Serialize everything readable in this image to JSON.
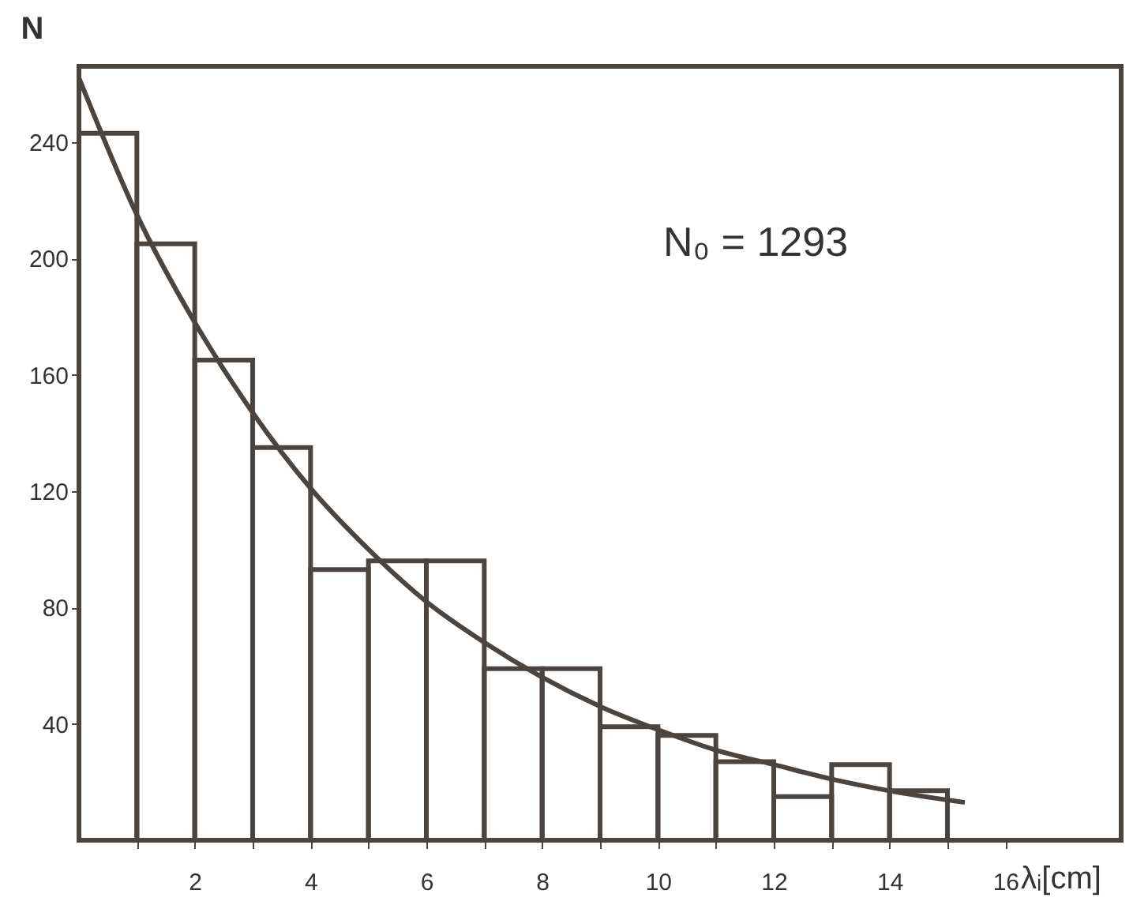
{
  "chart_data": {
    "type": "histogram",
    "xlabel": "λᵢ[cm]",
    "ylabel": "N",
    "annotations": [
      "N₀ = 1293"
    ],
    "xlim": [
      0,
      18
    ],
    "ylim": [
      0,
      266
    ],
    "xticks": [
      {
        "value": 1,
        "label": null
      },
      2,
      {
        "value": 3,
        "label": null
      },
      4,
      {
        "value": 5,
        "label": null
      },
      6,
      {
        "value": 7,
        "label": null
      },
      8,
      {
        "value": 9,
        "label": null
      },
      10,
      {
        "value": 11,
        "label": null
      },
      12,
      {
        "value": 13,
        "label": null
      },
      14,
      {
        "value": 15,
        "label": null
      },
      16
    ],
    "yticks": [
      40,
      80,
      120,
      160,
      200,
      240
    ],
    "series": [
      {
        "color": "#4a4540",
        "bins": [
          0,
          1,
          2,
          3,
          4,
          5,
          6,
          7,
          8,
          9,
          10,
          11,
          12,
          13,
          14,
          15
        ],
        "values": [
          243,
          205,
          165,
          135,
          93,
          96,
          96,
          59,
          59,
          39,
          36,
          27,
          15,
          26,
          17
        ]
      },
      {
        "type": "line",
        "color": "#4a4540",
        "x": [
          0,
          1,
          2,
          3,
          4,
          5,
          6,
          7,
          8,
          9,
          10,
          11,
          12,
          13,
          14,
          15.3
        ],
        "values": [
          262,
          215,
          178,
          147,
          121,
          100,
          82,
          68,
          56,
          46,
          38,
          31,
          26,
          21,
          17,
          13
        ]
      }
    ]
  }
}
